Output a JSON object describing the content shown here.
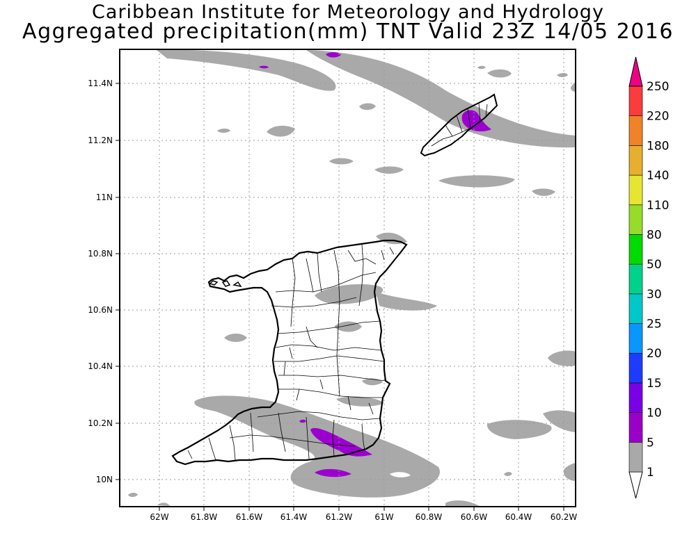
{
  "title_line1": "Caribbean Institute for Meteorology and Hydrology",
  "title_line2": "Aggregated precipitation(mm) TNT Valid 23Z 14/05 2016",
  "map": {
    "lon_ticks": [
      "62W",
      "61.8W",
      "61.6W",
      "61.4W",
      "61.2W",
      "61W",
      "60.8W",
      "60.6W",
      "60.4W",
      "60.2W"
    ],
    "lat_ticks": [
      "11.4N",
      "11.2N",
      "11N",
      "10.8N",
      "10.6N",
      "10.4N",
      "10.2N",
      "10N"
    ],
    "gridlines": true,
    "land_outline_color": "#000000",
    "precip_colors": {
      "1-5": "#a9a9a9",
      "5-10": "#9b00cf"
    }
  },
  "colorbar": {
    "labels": [
      "1",
      "5",
      "10",
      "15",
      "20",
      "25",
      "30",
      "50",
      "80",
      "110",
      "140",
      "180",
      "220",
      "250"
    ],
    "colors": [
      "#a9a9a9",
      "#9b00c8",
      "#7a00e6",
      "#1e3cff",
      "#0a96ff",
      "#00c8c8",
      "#00d28c",
      "#00dc00",
      "#96dc28",
      "#e6e632",
      "#e6af2d",
      "#f08228",
      "#fa3c3c",
      "#f00082"
    ]
  }
}
